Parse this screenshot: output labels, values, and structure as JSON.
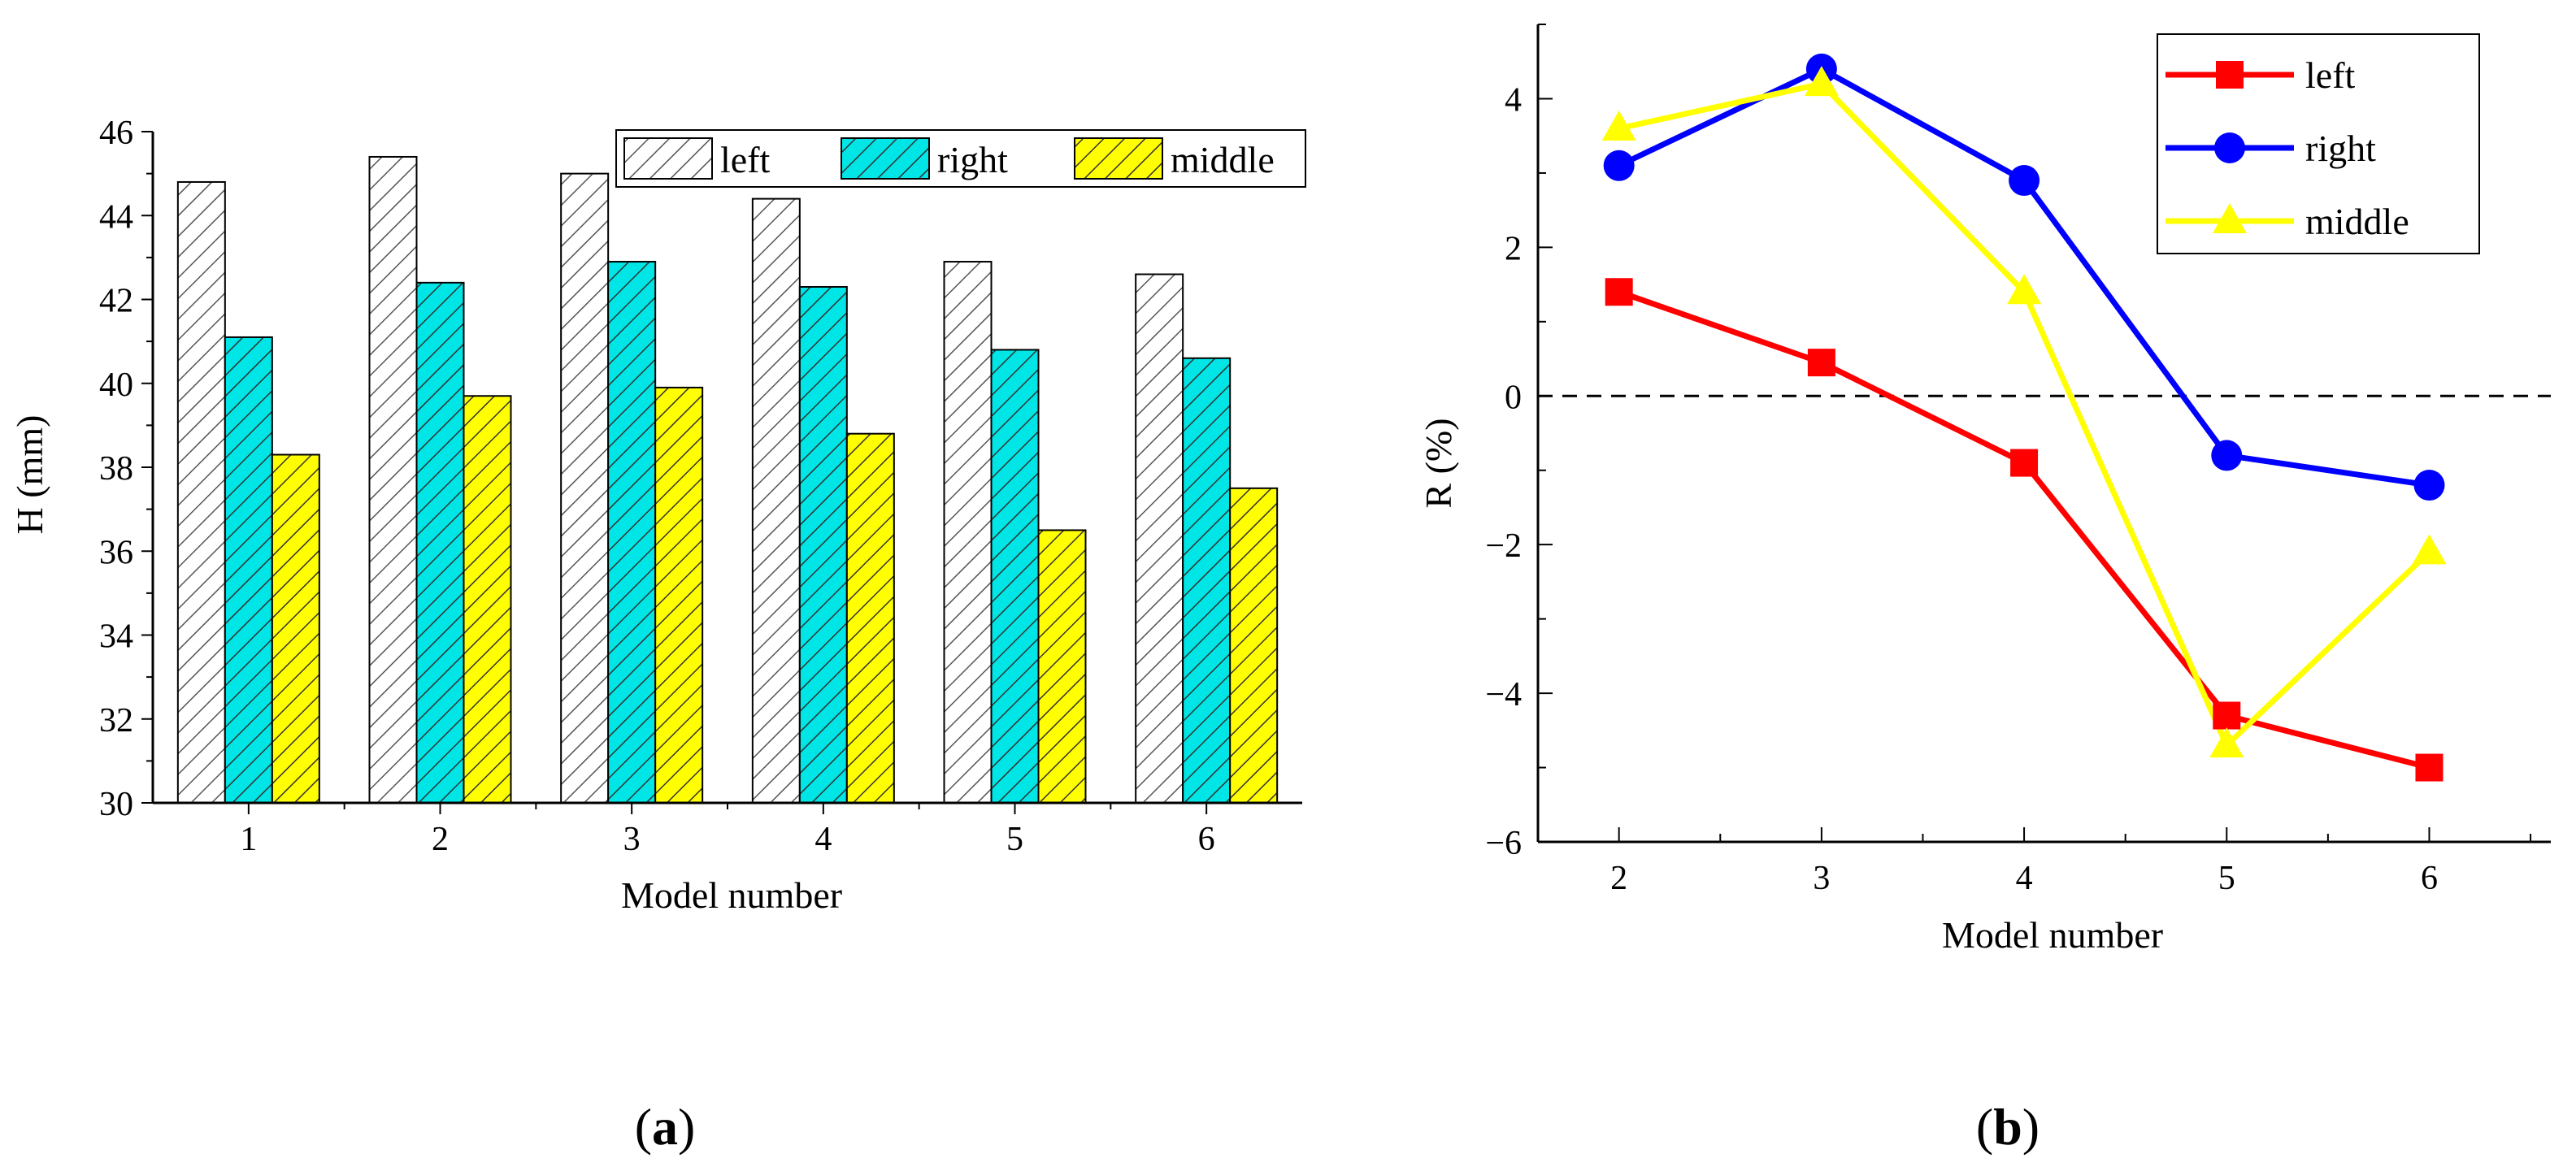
{
  "colors": {
    "left": "#ff0000",
    "right": "#0000ff",
    "middle": "#ffff00",
    "bar_left_fill": "#ffffff",
    "bar_right_fill": "#00e5e5",
    "bar_middle_fill": "#ffff00"
  },
  "panels": {
    "a": {
      "label_prefix": "(",
      "label_letter": "a",
      "label_suffix": ")"
    },
    "b": {
      "label_prefix": "(",
      "label_letter": "b",
      "label_suffix": ")"
    }
  },
  "chart_data": [
    {
      "type": "bar",
      "panel": "a",
      "categories": [
        "1",
        "2",
        "3",
        "4",
        "5",
        "6"
      ],
      "series": [
        {
          "name": "left",
          "values": [
            44.8,
            45.4,
            45.0,
            44.4,
            42.9,
            42.6
          ],
          "pattern": "hatch",
          "color": "#ffffff"
        },
        {
          "name": "right",
          "values": [
            41.1,
            42.4,
            42.9,
            42.3,
            40.8,
            40.6
          ],
          "pattern": "hatch",
          "color": "#00e5e5"
        },
        {
          "name": "middle",
          "values": [
            38.3,
            39.7,
            39.9,
            38.8,
            36.5,
            37.5
          ],
          "pattern": "hatch",
          "color": "#ffff00"
        }
      ],
      "xlabel": "Model number",
      "ylabel": "H (mm)",
      "ylim": [
        30,
        46
      ],
      "yticks": [
        "30",
        "32",
        "34",
        "36",
        "38",
        "40",
        "42",
        "44",
        "46"
      ],
      "legend": {
        "placement": "top-right",
        "entries": [
          "left",
          "right",
          "middle"
        ]
      },
      "grid": false
    },
    {
      "type": "line",
      "panel": "b",
      "x": [
        2,
        3,
        4,
        5,
        6
      ],
      "xticks": [
        "2",
        "3",
        "4",
        "5",
        "6"
      ],
      "series": [
        {
          "name": "left",
          "values": [
            1.4,
            0.45,
            -0.9,
            -4.3,
            -5.0
          ],
          "marker": "square",
          "color": "#ff0000"
        },
        {
          "name": "right",
          "values": [
            3.1,
            4.4,
            2.9,
            -0.8,
            -1.2
          ],
          "marker": "circle",
          "color": "#0000ff"
        },
        {
          "name": "middle",
          "values": [
            3.6,
            4.2,
            1.4,
            -4.7,
            -2.1
          ],
          "marker": "triangle",
          "color": "#ffff00"
        }
      ],
      "xlabel": "Model number",
      "ylabel": "R (%)",
      "xlim": [
        1.6,
        6.6
      ],
      "ylim": [
        -6,
        5
      ],
      "yticks": [
        "-6",
        "-4",
        "-2",
        "0",
        "2",
        "4"
      ],
      "reference_line": {
        "y": 0,
        "style": "dashed"
      },
      "legend": {
        "placement": "top-right",
        "entries": [
          "left",
          "right",
          "middle"
        ]
      },
      "grid": false
    }
  ]
}
